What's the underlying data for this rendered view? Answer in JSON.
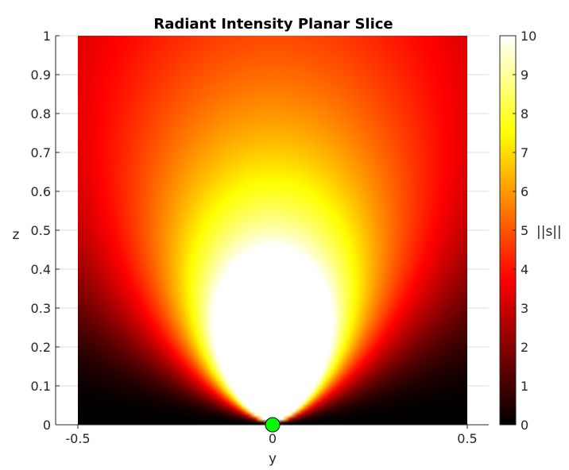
{
  "chart_data": {
    "type": "heatmap",
    "title": "Radiant Intensity Planar Slice",
    "xlabel": "y",
    "ylabel": "z",
    "xlim": [
      -0.5,
      0.5
    ],
    "ylim": [
      0,
      1
    ],
    "x_ticks": [
      "-0.5",
      "0",
      "0.5"
    ],
    "y_ticks": [
      "0",
      "0.1",
      "0.2",
      "0.3",
      "0.4",
      "0.5",
      "0.6",
      "0.7",
      "0.8",
      "0.9",
      "1"
    ],
    "grid": true,
    "colormap": "hot",
    "colorbar": {
      "label": "||s||",
      "range": [
        0,
        10
      ],
      "ticks": [
        "0",
        "1",
        "2",
        "3",
        "4",
        "5",
        "6",
        "7",
        "8",
        "9",
        "10"
      ]
    },
    "source_marker": {
      "y": 0,
      "z": 0,
      "color": "#00ff00"
    },
    "grid_color": "#dcdcdc"
  }
}
